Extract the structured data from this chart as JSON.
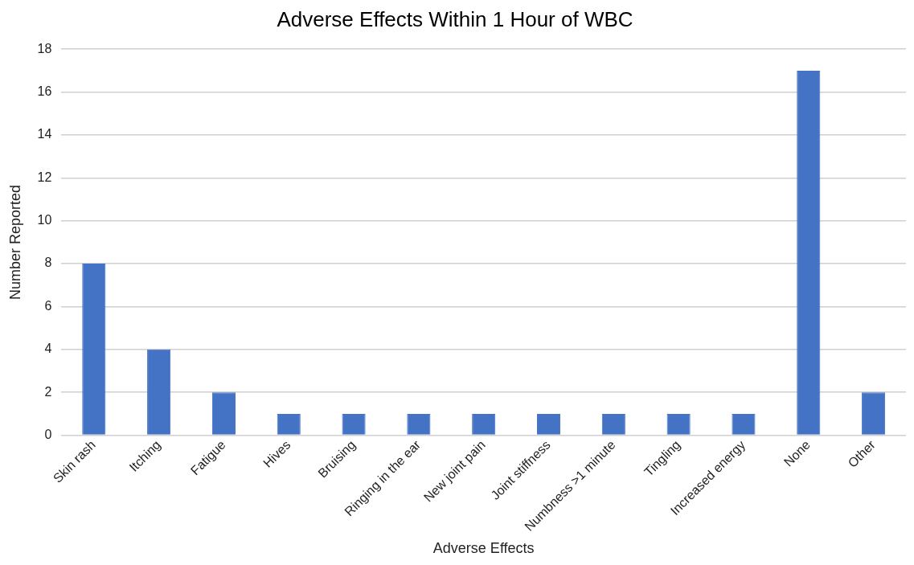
{
  "chart_data": {
    "type": "bar",
    "title": "Adverse Effects Within 1 Hour of WBC",
    "xlabel": "Adverse Effects",
    "ylabel": "Number Reported",
    "categories": [
      "Skin rash",
      "Itching",
      "Fatigue",
      "Hives",
      "Bruising",
      "Ringing in the ear",
      "New joint pain",
      "Joint stiffness",
      "Numbness >1 minute",
      "Tingling",
      "Increased energy",
      "None",
      "Other"
    ],
    "values": [
      8,
      4,
      2,
      1,
      1,
      1,
      1,
      1,
      1,
      1,
      1,
      17,
      2
    ],
    "color": "#4472c4",
    "ylim": [
      0,
      18
    ],
    "yticks": [
      0,
      2,
      4,
      6,
      8,
      10,
      12,
      14,
      16,
      18
    ],
    "grid": "y",
    "legend": false
  }
}
